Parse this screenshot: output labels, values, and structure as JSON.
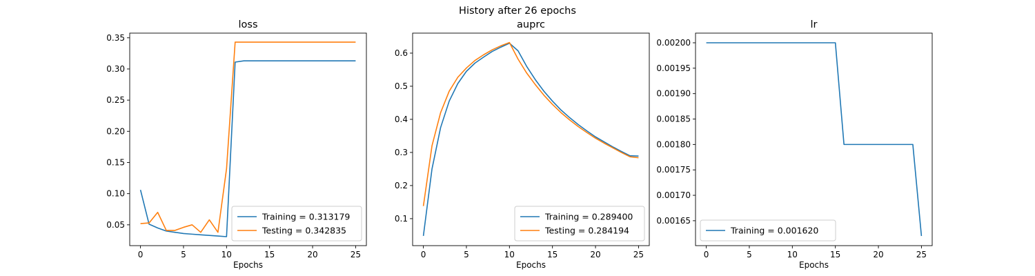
{
  "suptitle": "History after 26 epochs",
  "chart_data": [
    {
      "type": "line",
      "title": "loss",
      "xlabel": "Epochs",
      "ylabel": "",
      "xlim": [
        -1.25,
        26.25
      ],
      "ylim": [
        0.0166,
        0.3575
      ],
      "xticks": [
        0,
        5,
        10,
        15,
        20,
        25
      ],
      "yticks": [
        0.05,
        0.1,
        0.15,
        0.2,
        0.25,
        0.3,
        0.35
      ],
      "legend_position": "lower-right",
      "x": [
        0,
        1,
        2,
        3,
        4,
        5,
        6,
        7,
        8,
        9,
        10,
        11,
        12,
        13,
        14,
        15,
        16,
        17,
        18,
        19,
        20,
        21,
        22,
        23,
        24,
        25
      ],
      "series": [
        {
          "name": "Training = 0.313179",
          "color": "#1f77b4",
          "values": [
            0.106,
            0.051,
            0.045,
            0.04,
            0.038,
            0.036,
            0.035,
            0.034,
            0.033,
            0.032,
            0.031,
            0.311,
            0.313,
            0.313,
            0.313,
            0.313,
            0.313,
            0.313,
            0.313,
            0.313,
            0.313,
            0.313,
            0.313,
            0.313,
            0.313,
            0.313
          ]
        },
        {
          "name": "Testing = 0.342835",
          "color": "#ff7f0e",
          "values": [
            0.052,
            0.053,
            0.07,
            0.041,
            0.041,
            0.046,
            0.05,
            0.038,
            0.058,
            0.038,
            0.14,
            0.343,
            0.343,
            0.343,
            0.343,
            0.343,
            0.343,
            0.343,
            0.343,
            0.343,
            0.343,
            0.343,
            0.343,
            0.343,
            0.343,
            0.343
          ]
        }
      ]
    },
    {
      "type": "line",
      "title": "auprc",
      "xlabel": "Epochs",
      "ylabel": "",
      "xlim": [
        -1.25,
        26.25
      ],
      "ylim": [
        0.0185,
        0.6604
      ],
      "xticks": [
        0,
        5,
        10,
        15,
        20,
        25
      ],
      "yticks": [
        0.1,
        0.2,
        0.3,
        0.4,
        0.5,
        0.6
      ],
      "legend_position": "lower-right",
      "x": [
        0,
        1,
        2,
        3,
        4,
        5,
        6,
        7,
        8,
        9,
        10,
        11,
        12,
        13,
        14,
        15,
        16,
        17,
        18,
        19,
        20,
        21,
        22,
        23,
        24,
        25
      ],
      "series": [
        {
          "name": "Training = 0.289400",
          "color": "#1f77b4",
          "values": [
            0.048,
            0.25,
            0.375,
            0.455,
            0.508,
            0.545,
            0.57,
            0.588,
            0.605,
            0.618,
            0.63,
            0.607,
            0.56,
            0.52,
            0.485,
            0.455,
            0.428,
            0.405,
            0.384,
            0.365,
            0.347,
            0.332,
            0.317,
            0.303,
            0.29,
            0.289
          ]
        },
        {
          "name": "Testing = 0.284194",
          "color": "#ff7f0e",
          "values": [
            0.138,
            0.32,
            0.42,
            0.485,
            0.527,
            0.555,
            0.578,
            0.595,
            0.61,
            0.622,
            0.632,
            0.582,
            0.54,
            0.505,
            0.473,
            0.445,
            0.42,
            0.398,
            0.378,
            0.36,
            0.343,
            0.328,
            0.314,
            0.3,
            0.287,
            0.284
          ]
        }
      ]
    },
    {
      "type": "line",
      "title": "lr",
      "xlabel": "Epochs",
      "ylabel": "",
      "xlim": [
        -1.25,
        26.25
      ],
      "ylim": [
        0.001601,
        0.002019
      ],
      "xticks": [
        0,
        5,
        10,
        15,
        20,
        25
      ],
      "yticks": [
        0.00165,
        0.0017,
        0.00175,
        0.0018,
        0.00185,
        0.0019,
        0.00195,
        0.002
      ],
      "legend_position": "lower-left",
      "x": [
        0,
        1,
        2,
        3,
        4,
        5,
        6,
        7,
        8,
        9,
        10,
        11,
        12,
        13,
        14,
        15,
        16,
        17,
        18,
        19,
        20,
        21,
        22,
        23,
        24,
        25
      ],
      "series": [
        {
          "name": "Training = 0.001620",
          "color": "#1f77b4",
          "values": [
            0.002,
            0.002,
            0.002,
            0.002,
            0.002,
            0.002,
            0.002,
            0.002,
            0.002,
            0.002,
            0.002,
            0.002,
            0.002,
            0.002,
            0.002,
            0.002,
            0.0018,
            0.0018,
            0.0018,
            0.0018,
            0.0018,
            0.0018,
            0.0018,
            0.0018,
            0.0018,
            0.00162
          ]
        }
      ]
    }
  ]
}
